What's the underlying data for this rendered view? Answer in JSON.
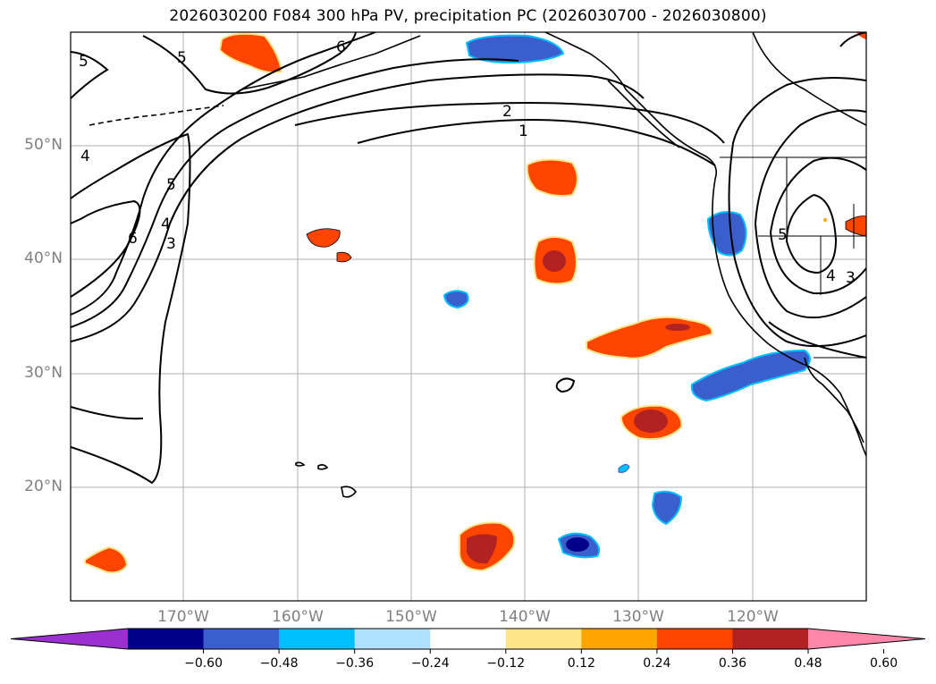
{
  "title": "2026030200 F084 300 hPa PV, precipitation PC (2026030700 - 2026030800)",
  "latitude_labels": [
    "50°N",
    "40°N",
    "30°N",
    "20°N"
  ],
  "longitude_labels": [
    "170°W",
    "160°W",
    "150°W",
    "140°W",
    "130°W",
    "120°W"
  ],
  "pv_contour_labels": [
    "5",
    "5",
    "6",
    "4",
    "5",
    "4",
    "6",
    "3",
    "2",
    "1",
    "5",
    "4",
    "3"
  ],
  "colorbar": {
    "ticks": [
      "−0.60",
      "−0.48",
      "−0.36",
      "−0.24",
      "−0.12",
      "0.12",
      "0.24",
      "0.36",
      "0.48",
      "0.60"
    ],
    "colors": [
      "#9b30d0",
      "#00008b",
      "#3a5fcd",
      "#00bfff",
      "#b0e2ff",
      "#ffffff",
      "#fde68a",
      "#ffa500",
      "#ff4500",
      "#b22222",
      "#ff88aa"
    ]
  }
}
